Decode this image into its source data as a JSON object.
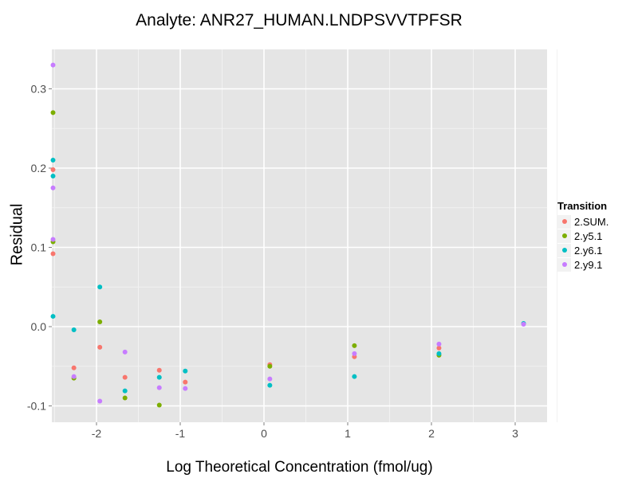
{
  "chart_data": {
    "type": "scatter",
    "title": "Analyte: ANR27_HUMAN.LNDPSVVTPFSR",
    "xlabel": "Log Theoretical Concentration (fmol/ug)",
    "ylabel": "Residual",
    "xlim": [
      -2.52,
      3.33
    ],
    "ylim": [
      -0.12,
      0.35
    ],
    "xticks": [
      -2,
      -1,
      0,
      1,
      2,
      3
    ],
    "yticks": [
      -0.1,
      0.0,
      0.1,
      0.2,
      0.3
    ],
    "ytick_labels": [
      "-0.1",
      "0.0",
      "0.1",
      "0.2",
      "0.3"
    ],
    "grid": true,
    "legend_position": "right",
    "legend_title": "Transition",
    "series": [
      {
        "name": "2.SUM.",
        "color": "#F8766D",
        "points": [
          [
            -2.52,
            0.198
          ],
          [
            -2.52,
            0.092
          ],
          [
            -2.27,
            -0.052
          ],
          [
            -1.96,
            -0.026
          ],
          [
            -1.66,
            -0.064
          ],
          [
            -1.25,
            -0.055
          ],
          [
            -0.94,
            -0.07
          ],
          [
            0.07,
            -0.048
          ],
          [
            1.08,
            -0.038
          ],
          [
            2.09,
            -0.027
          ]
        ]
      },
      {
        "name": "2.y5.1",
        "color": "#7CAE00",
        "points": [
          [
            -2.52,
            0.27
          ],
          [
            -2.52,
            0.107
          ],
          [
            -2.27,
            -0.065
          ],
          [
            -1.96,
            0.006
          ],
          [
            -1.66,
            -0.09
          ],
          [
            -1.25,
            -0.099
          ],
          [
            0.07,
            -0.05
          ],
          [
            1.08,
            -0.024
          ],
          [
            2.09,
            -0.036
          ]
        ]
      },
      {
        "name": "2.y6.1",
        "color": "#00BFC4",
        "points": [
          [
            -2.52,
            0.21
          ],
          [
            -2.52,
            0.19
          ],
          [
            -2.52,
            0.013
          ],
          [
            -2.27,
            -0.004
          ],
          [
            -1.96,
            0.05
          ],
          [
            -1.66,
            -0.081
          ],
          [
            -1.25,
            -0.064
          ],
          [
            -0.94,
            -0.056
          ],
          [
            0.07,
            -0.074
          ],
          [
            1.08,
            -0.063
          ],
          [
            2.09,
            -0.034
          ],
          [
            3.1,
            0.004
          ]
        ]
      },
      {
        "name": "2.y9.1",
        "color": "#C77CFF",
        "points": [
          [
            -2.52,
            0.33
          ],
          [
            -2.52,
            0.175
          ],
          [
            -2.52,
            0.11
          ],
          [
            -2.27,
            -0.063
          ],
          [
            -1.96,
            -0.094
          ],
          [
            -1.66,
            -0.032
          ],
          [
            -1.25,
            -0.077
          ],
          [
            -0.94,
            -0.078
          ],
          [
            0.07,
            -0.066
          ],
          [
            1.08,
            -0.034
          ],
          [
            2.09,
            -0.022
          ],
          [
            3.1,
            0.003
          ]
        ]
      }
    ]
  },
  "panel": {
    "background": "#E5E5E5",
    "grid_major": "#FFFFFF",
    "grid_minor": "#F2F2F2"
  }
}
